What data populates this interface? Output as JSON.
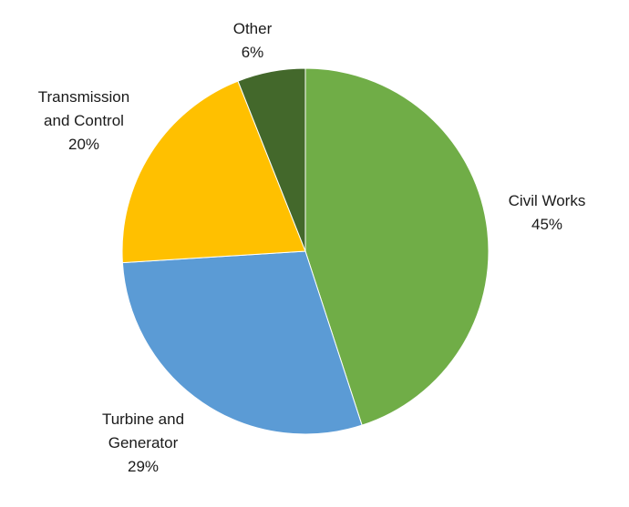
{
  "chart_data": {
    "type": "pie",
    "title": "",
    "start_angle_deg": 0,
    "direction": "clockwise",
    "legend": "none",
    "slices": [
      {
        "label_lines": [
          "Civil Works"
        ],
        "value": 45,
        "value_label": "45%",
        "color": "#70ad47"
      },
      {
        "label_lines": [
          "Turbine and",
          "Generator"
        ],
        "value": 29,
        "value_label": "29%",
        "color": "#5b9bd5"
      },
      {
        "label_lines": [
          "Transmission",
          "and Control"
        ],
        "value": 20,
        "value_label": "20%",
        "color": "#ffc000"
      },
      {
        "label_lines": [
          "Other"
        ],
        "value": 6,
        "value_label": "6%",
        "color": "#43682b"
      }
    ]
  }
}
